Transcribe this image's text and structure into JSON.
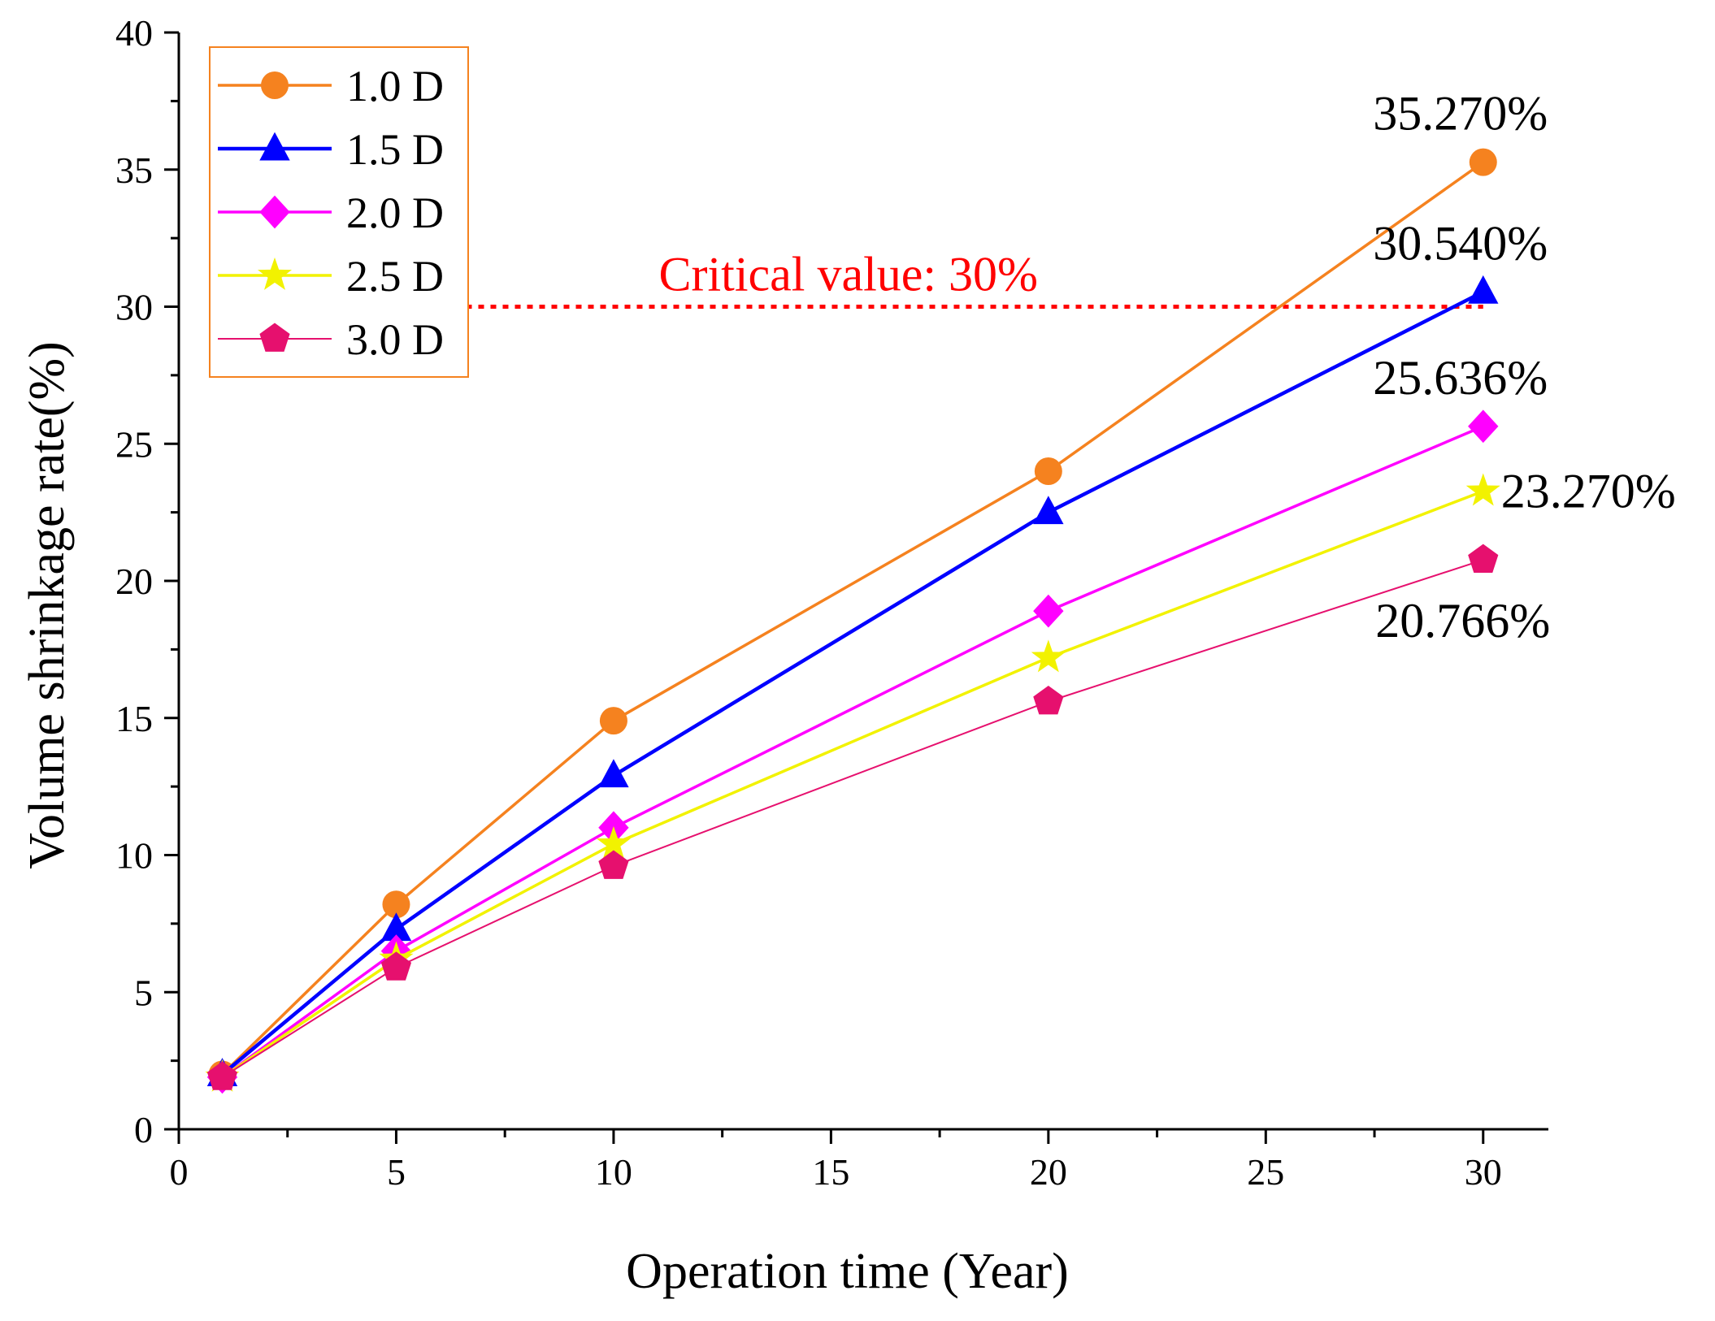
{
  "chart_data": {
    "type": "line",
    "xlabel": "Operation time (Year)",
    "ylabel": "Volume shrinkage rate(%)",
    "xlim": [
      0,
      31.5
    ],
    "ylim": [
      0,
      40
    ],
    "x_ticks": [
      0,
      5,
      10,
      15,
      20,
      25,
      30
    ],
    "y_ticks": [
      0,
      5,
      10,
      15,
      20,
      25,
      30,
      35,
      40
    ],
    "x_minor_step": 2.5,
    "y_minor_step": 2.5,
    "legend_position": "top-left",
    "x": [
      1,
      5,
      10,
      20,
      30
    ],
    "series": [
      {
        "name": "1.0 D",
        "color": "#F5821F",
        "marker": "circle",
        "values": [
          2.0,
          8.2,
          14.9,
          24.0,
          35.27
        ]
      },
      {
        "name": "1.5 D",
        "color": "#0000FF",
        "marker": "triangle",
        "values": [
          2.0,
          7.3,
          12.9,
          22.5,
          30.54
        ]
      },
      {
        "name": "2.0 D",
        "color": "#FF00FF",
        "marker": "diamond",
        "values": [
          1.9,
          6.5,
          11.0,
          18.9,
          25.636
        ]
      },
      {
        "name": "2.5 D",
        "color": "#F2F200",
        "marker": "star",
        "values": [
          1.9,
          6.2,
          10.4,
          17.2,
          23.27
        ]
      },
      {
        "name": "3.0 D",
        "color": "#E6106E",
        "marker": "pentagon",
        "values": [
          1.9,
          5.9,
          9.6,
          15.6,
          20.766
        ]
      }
    ],
    "reference_line": {
      "y": 30,
      "label": "Critical value: 30%",
      "color": "#FF0000"
    },
    "annotations": [
      {
        "text": "35.270%",
        "series": "1.0 D",
        "placement": "above"
      },
      {
        "text": "30.540%",
        "series": "1.5 D",
        "placement": "above"
      },
      {
        "text": "25.636%",
        "series": "2.0 D",
        "placement": "above"
      },
      {
        "text": "23.270%",
        "series": "2.5 D",
        "placement": "right"
      },
      {
        "text": "20.766%",
        "series": "3.0 D",
        "placement": "below"
      }
    ]
  }
}
